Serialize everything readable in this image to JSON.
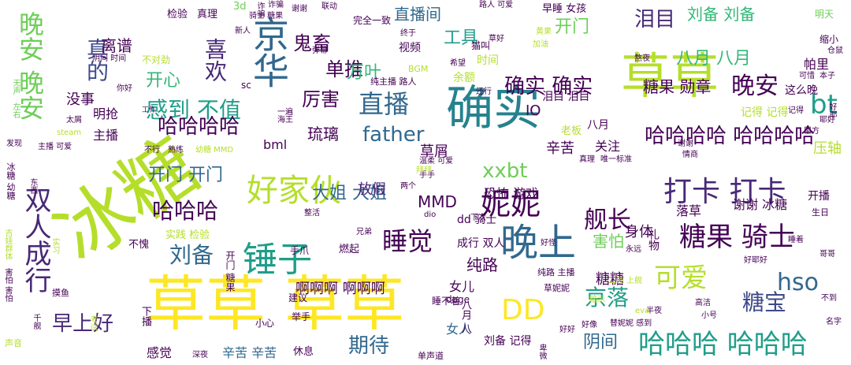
{
  "words": {
    "w1": "草草 草草",
    "w2": "冰糖",
    "w3": "确实",
    "w4": "草草",
    "w5": "京华",
    "w6": "晚上",
    "w7": "锤子",
    "w8": "好家伙",
    "w9": "双人成行",
    "w10": "妮妮",
    "w11": "晚安 晚安",
    "w12": "DD",
    "w13": "打卡 打卡",
    "w14": "可爱",
    "w15": "哈哈哈 哈哈哈",
    "w16": "糖果 骑士",
    "w17": "晚安",
    "w18": "睡觉",
    "w19": "直播",
    "w20": "舰长",
    "w21": "hso",
    "w22": "感到 不值",
    "w23": "bt",
    "w24": "哈哈哈",
    "w25": "刘备",
    "w26": "哈哈哈哈 哈哈哈哈",
    "w27": "确实 确实",
    "w28": "father",
    "w29": "xxbt",
    "w30": "喜欢",
    "w31": "糖宝",
    "w32": "期待",
    "w33": "早上好",
    "w34": "京落",
    "w35": "哈哈哈哈",
    "w36": "泪目",
    "w37": "真的",
    "w38": "单推",
    "w39": "鬼畜",
    "w40": "厉害",
    "w41": "大姐 大姐",
    "w42": "开门 开门",
    "w43": "阴间",
    "w44": "工具",
    "w45": "直播间",
    "w46": "刘备 刘备",
    "w47": "八月 八月",
    "w48": "糖果 勋章",
    "w49": "MMD",
    "w50": "万叶",
    "w51": "开心",
    "w52": "离谱",
    "w53": "开门",
    "w54": "琉璃",
    "w55": "害怕",
    "w56": "糖糖",
    "w57": "身体",
    "w58": "纯路",
    "w59": "没事",
    "w60": "谢谢 冰糖",
    "w61": "啊啊啊 啊啊啊",
    "w62": "女儿",
    "w63": "放假",
    "w64": "草屑",
    "w65": "压轴",
    "w66": "恐怖 游戏",
    "w67": "成行 双人",
    "w68": "帕里",
    "w69": "明抢",
    "w70": "IO",
    "w71": "这么晚",
    "w72": "bml",
    "w73": "关注",
    "w74": "辛苦",
    "w75": "辛苦 辛苦",
    "w76": "感觉",
    "w77": "女人",
    "w78": "主播",
    "w79": "落草",
    "w80": "开播",
    "w81": "记得 记得",
    "w82": "泪目 泪目",
    "w83": "八月",
    "w84": "dd 骑士",
    "w85": "刘备 记得",
    "w86": "视频",
    "w87": "时间",
    "w88": "余额",
    "w89": "真理",
    "w90": "检验",
    "w91": "实践 检验",
    "w92": "不愧",
    "w93": "手爪",
    "w94": "燃起",
    "w95": "老板",
    "w96": "明天",
    "w97": "缩小",
    "w98": "早睡 女孩",
    "w99": "3d",
    "w100": "骑士 糖果",
    "w101": "建议",
    "w102": "举手",
    "w103": "小心",
    "w104": "休息",
    "w105": "深夜",
    "w106": "单声道",
    "w107": "摸鱼",
    "w108": "声音",
    "w109": "完全一致",
    "w110": "草妮妮",
    "w111": "好好",
    "w112": "高洁",
    "w113": "不到",
    "w114": "哥哥",
    "w115": "名字",
    "w116": "生日",
    "w117": "一遍",
    "w118": "新人",
    "w119": "猫叫",
    "w120": "草好",
    "w121": "熬夜",
    "w122": "阴间 时间",
    "w123": "不对劲",
    "w124": "纯主播 路人",
    "w125": "BGM",
    "w126": "弹幕",
    "w127": "希望",
    "w128": "还行",
    "w129": "sc",
    "w130": "你好",
    "w131": "太屑",
    "w132": "发现",
    "w133": "主播 可爱",
    "w134": "熟练",
    "w135": "幼糖 MMD",
    "w136": "不行",
    "w137": "整活",
    "w138": "兄弟",
    "w139": "两个",
    "w140": "手手",
    "w141": "dio",
    "w142": "下次",
    "w143": "好怪",
    "w144": "永远",
    "w145": "睡着",
    "w146": "好耶好",
    "w147": "睡不着",
    "w148": "纯路 主播",
    "w149": "二创 上舰",
    "w150": "暗示",
    "w151": "好像",
    "w152": "替妮妮 感到",
    "w153": "半夜",
    "w154": "eva",
    "w155": "小号",
    "w156": "doge",
    "w157": "情商",
    "w158": "谢谢",
    "w159": "甲方",
    "w160": "耶好",
    "w161": "可惜",
    "w162": "本子",
    "w163": "记得",
    "w164": "唯一标准",
    "w165": "真理",
    "w166": "温柔 可爱",
    "w167": "海王",
    "w168": "路人 可爱",
    "w169": "联动",
    "w170": "谢谢",
    "w171": "诈骗",
    "w172": "终于",
    "w173": "加油",
    "w174": "黄果",
    "w175": "仓鼠",
    "w176": "steam",
    "w177": "工作",
    "w178": "拜拜",
    "w179": "冰糖 幼糖",
    "w180": "东西",
    "w181": "吉娃群体",
    "w182": "实习",
    "w183": "害怕 害怕",
    "w184": "千舰",
    "w185": "考试",
    "w186": "卑微",
    "w187": "开门 糖果",
    "w188": "下播",
    "w189": "礼物",
    "w190": "八月 八",
    "w191": "好耶",
    "w192": "诈骗",
    "w193": "左右",
    "w194": "无声"
  },
  "colors": {
    "yellow": "#fde725",
    "lime": "#b5de2b",
    "lightgreen": "#6ece58",
    "green": "#35b779",
    "teal": "#1f9e89",
    "tealblue": "#26828e",
    "blue": "#31688e",
    "indigo": "#3e4989",
    "violet": "#482878",
    "purple": "#440154"
  }
}
